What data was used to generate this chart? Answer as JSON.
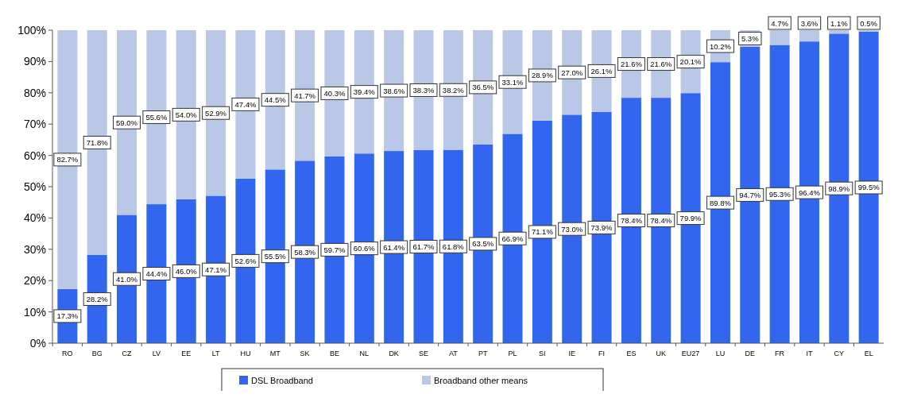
{
  "chart_data": {
    "type": "bar",
    "stacked": true,
    "categories": [
      "RO",
      "BG",
      "CZ",
      "LV",
      "EE",
      "LT",
      "HU",
      "MT",
      "SK",
      "BE",
      "NL",
      "DK",
      "SE",
      "AT",
      "PT",
      "PL",
      "SI",
      "IE",
      "FI",
      "ES",
      "UK",
      "EU27",
      "LU",
      "DE",
      "FR",
      "IT",
      "CY",
      "EL"
    ],
    "series": [
      {
        "name": "DSL Broadband",
        "color": "#3366ee",
        "values": [
          17.3,
          28.2,
          41.0,
          44.4,
          46.0,
          47.1,
          52.6,
          55.5,
          58.3,
          59.7,
          60.6,
          61.4,
          61.7,
          61.8,
          63.5,
          66.9,
          71.1,
          73.0,
          73.9,
          78.4,
          78.4,
          79.9,
          89.8,
          94.7,
          95.3,
          96.4,
          98.9,
          99.5
        ],
        "value_labels": [
          "17.3%",
          "28.2%",
          "41.0%",
          "44.4%",
          "46.0%",
          "47.1%",
          "52.6%",
          "55.5%",
          "58.3%",
          "59.7%",
          "60.6%",
          "61.4%",
          "61.7%",
          "61.8%",
          "63.5%",
          "66.9%",
          "71.1%",
          "73.0%",
          "73.9%",
          "78.4%",
          "78.4%",
          "79.9%",
          "89.8%",
          "94.7%",
          "95.3%",
          "96.4%",
          "98.9%",
          "99.5%"
        ]
      },
      {
        "name": "Broadband other means",
        "color": "#b8c8e6",
        "values": [
          82.7,
          71.8,
          59.0,
          55.6,
          54.0,
          52.9,
          47.4,
          44.5,
          41.7,
          40.3,
          39.4,
          38.6,
          38.3,
          38.2,
          36.5,
          33.1,
          28.9,
          27.0,
          26.1,
          21.6,
          21.6,
          20.1,
          10.2,
          5.3,
          4.7,
          3.6,
          1.1,
          0.5
        ],
        "value_labels": [
          "82.7%",
          "71.8%",
          "59.0%",
          "55.6%",
          "54.0%",
          "52.9%",
          "47.4%",
          "44.5%",
          "41.7%",
          "40.3%",
          "39.4%",
          "38.6%",
          "38.3%",
          "38.2%",
          "36.5%",
          "33.1%",
          "28.9%",
          "27.0%",
          "26.1%",
          "21.6%",
          "21.6%",
          "20.1%",
          "10.2%",
          "5.3%",
          "4.7%",
          "3.6%",
          "1.1%",
          "0.5%"
        ]
      }
    ],
    "ylim": [
      0,
      100
    ],
    "yticks": [
      {
        "value": 0,
        "label": "0%"
      },
      {
        "value": 10,
        "label": "10%"
      },
      {
        "value": 20,
        "label": "20%"
      },
      {
        "value": 30,
        "label": "30%"
      },
      {
        "value": 40,
        "label": "40%"
      },
      {
        "value": 50,
        "label": "50%"
      },
      {
        "value": 60,
        "label": "60%"
      },
      {
        "value": 70,
        "label": "70%"
      },
      {
        "value": 80,
        "label": "80%"
      },
      {
        "value": 90,
        "label": "90%"
      },
      {
        "value": 100,
        "label": "100%"
      }
    ],
    "legend": "bottom"
  }
}
